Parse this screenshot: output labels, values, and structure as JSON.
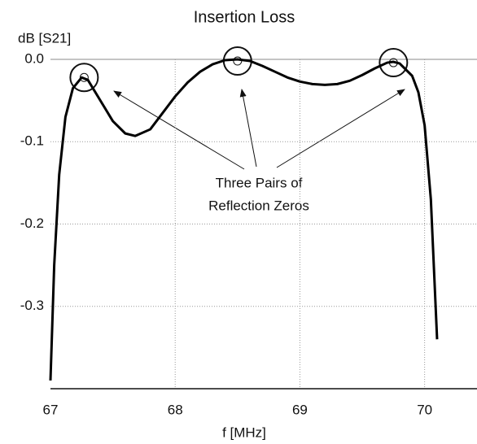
{
  "chart_data": {
    "type": "line",
    "title": "Insertion Loss",
    "y_label": "dB [S21]",
    "x_label": "f [MHz]",
    "annotation": [
      "Three Pairs of",
      "Reflection Zeros"
    ],
    "x": [
      67.0,
      67.03,
      67.07,
      67.12,
      67.18,
      67.25,
      67.3,
      67.4,
      67.5,
      67.6,
      67.68,
      67.8,
      67.9,
      68.0,
      68.1,
      68.2,
      68.3,
      68.4,
      68.5,
      68.6,
      68.7,
      68.8,
      68.9,
      69.0,
      69.1,
      69.2,
      69.3,
      69.4,
      69.5,
      69.6,
      69.7,
      69.75,
      69.8,
      69.9,
      69.95,
      70.0,
      70.05,
      70.1
    ],
    "series": [
      {
        "name": "S21",
        "color": "#000000",
        "values": [
          -0.39,
          -0.25,
          -0.14,
          -0.07,
          -0.035,
          -0.022,
          -0.025,
          -0.05,
          -0.075,
          -0.09,
          -0.093,
          -0.085,
          -0.065,
          -0.045,
          -0.028,
          -0.015,
          -0.006,
          -0.001,
          0.0,
          -0.002,
          -0.008,
          -0.015,
          -0.022,
          -0.027,
          -0.03,
          -0.031,
          -0.03,
          -0.026,
          -0.019,
          -0.011,
          -0.004,
          -0.003,
          -0.005,
          -0.02,
          -0.04,
          -0.08,
          -0.17,
          -0.34
        ]
      }
    ],
    "xlim": [
      67,
      70.42
    ],
    "xticks": [
      67,
      68,
      69,
      70
    ],
    "ylim": [
      -0.4,
      0
    ],
    "yticks": [
      {
        "value": 0,
        "label": "0.0"
      },
      -0.1,
      -0.2,
      -0.3
    ],
    "grid": true
  }
}
